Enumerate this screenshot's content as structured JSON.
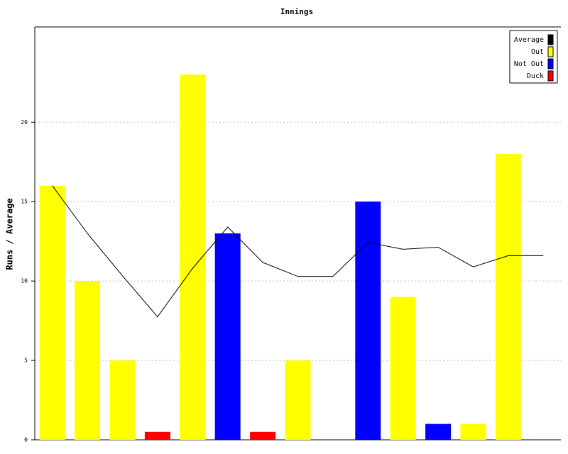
{
  "chart_data": {
    "type": "bar",
    "title": "Innings",
    "y_label": "Runs / Average",
    "categories": [
      null,
      null,
      null,
      null,
      null,
      null,
      null,
      null,
      null,
      null,
      null,
      null,
      null,
      null,
      null
    ],
    "series": [
      {
        "name": "Average",
        "color": "#000000",
        "kind": "line",
        "values": [
          16,
          13,
          10.33,
          7.75,
          10.8,
          13.4,
          11.17,
          10.29,
          10.29,
          12.43,
          12,
          12.13,
          10.89,
          11.6,
          11.6
        ]
      },
      {
        "name": "Out",
        "color": "#ffff00",
        "kind": "bar",
        "values": [
          16,
          10,
          5,
          null,
          23,
          null,
          null,
          5,
          null,
          null,
          9,
          null,
          1,
          18,
          null
        ]
      },
      {
        "name": "Not Out",
        "color": "#0000ff",
        "kind": "bar",
        "values": [
          null,
          null,
          null,
          null,
          null,
          13,
          null,
          null,
          null,
          15,
          null,
          1,
          null,
          null,
          null
        ]
      },
      {
        "name": "Duck",
        "color": "#ff0000",
        "kind": "bar",
        "values": [
          null,
          null,
          null,
          0.5,
          null,
          null,
          0.5,
          null,
          null,
          null,
          null,
          null,
          null,
          null,
          null
        ]
      }
    ],
    "ylim": [
      0,
      26
    ],
    "yticks": [
      0,
      5,
      10,
      15,
      20
    ],
    "grid": true,
    "legend": "top-right"
  }
}
